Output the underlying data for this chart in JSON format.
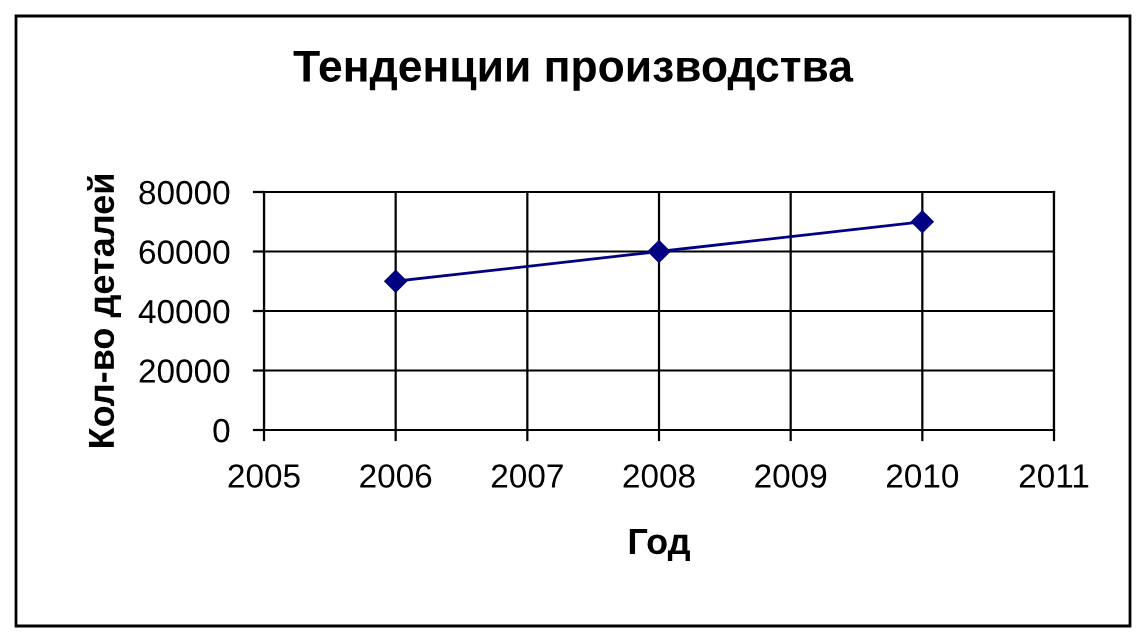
{
  "chart_data": {
    "type": "line",
    "title": "Тенденции производства",
    "xlabel": "Год",
    "ylabel": "Кол-во деталей",
    "x": [
      2006,
      2008,
      2010
    ],
    "series": [
      {
        "color": "#000080",
        "values": [
          50000,
          60000,
          70000
        ]
      }
    ],
    "xlim": [
      2005,
      2011
    ],
    "xticks": [
      2005,
      2006,
      2007,
      2008,
      2009,
      2010,
      2011
    ],
    "ylim": [
      0,
      80000
    ],
    "yticks": [
      0,
      20000,
      40000,
      60000,
      80000
    ],
    "grid": true,
    "marker": "diamond",
    "line_style": "solid",
    "legend": false
  }
}
